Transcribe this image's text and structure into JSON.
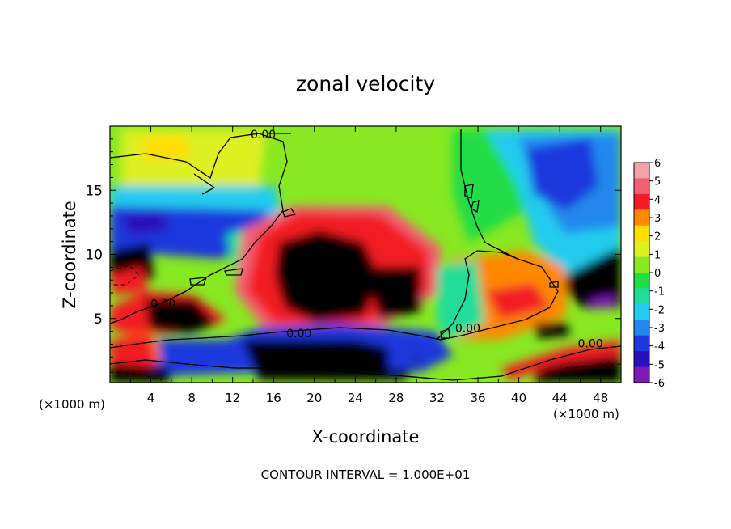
{
  "chart_data": {
    "type": "heatmap",
    "title": "zonal velocity",
    "xlabel": "X-coordinate",
    "ylabel": "Z-coordinate",
    "x_unit_label": "(×1000 m)",
    "x_unit_label_right": "(×1000 m)",
    "xlim": [
      0,
      50
    ],
    "ylim": [
      0,
      20
    ],
    "x_ticks": [
      4,
      8,
      12,
      16,
      20,
      24,
      28,
      32,
      36,
      40,
      44,
      48
    ],
    "y_ticks": [
      5,
      10,
      15
    ],
    "colorbar": {
      "ticks": [
        6,
        5,
        4,
        3,
        2,
        1,
        0,
        -1,
        -2,
        -3,
        -4,
        -5,
        -6
      ],
      "colors": [
        "#f4a0a8",
        "#f26072",
        "#f21c24",
        "#ff8800",
        "#ffdd00",
        "#ddf022",
        "#88e822",
        "#22dd44",
        "#22dd99",
        "#22ccee",
        "#2288ee",
        "#1e38dd",
        "#2a10bb",
        "#7a1ab8"
      ],
      "range": [
        -6,
        6
      ]
    },
    "contour_labels": [
      {
        "text": "0.00",
        "x": 15.0,
        "z": 19.3
      },
      {
        "text": "0.00",
        "x": 5.2,
        "z": 6.1
      },
      {
        "text": "0.00",
        "x": 18.5,
        "z": 3.8
      },
      {
        "text": "0.00",
        "x": 35.0,
        "z": 4.2
      },
      {
        "text": "0.00",
        "x": 47.0,
        "z": 3.0
      }
    ],
    "footer": "CONTOUR INTERVAL = 1.000E+01",
    "grid": false
  }
}
